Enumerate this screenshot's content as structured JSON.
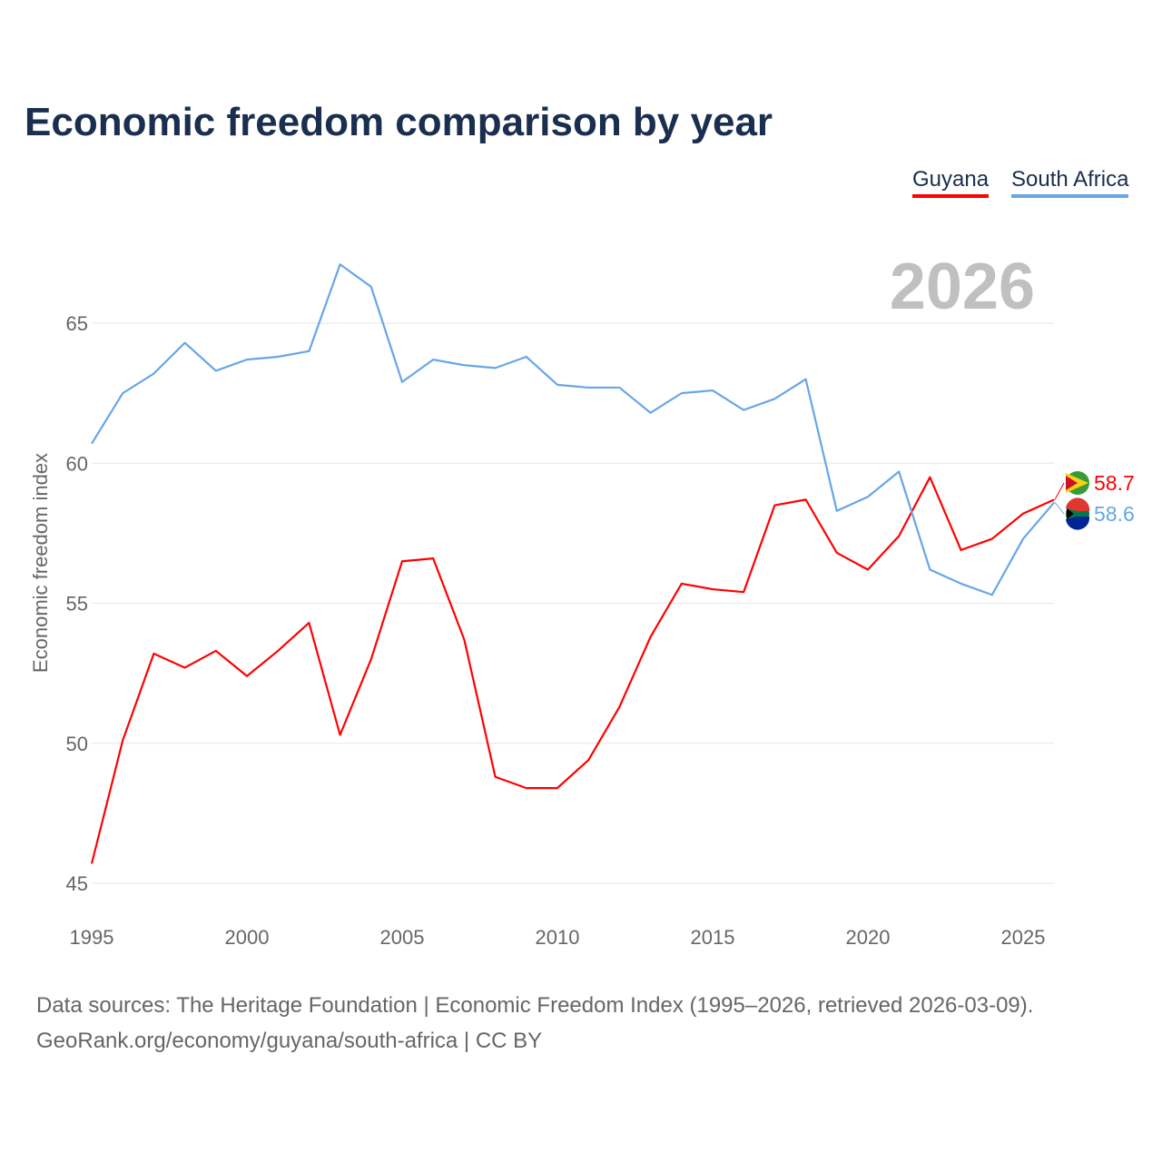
{
  "title": "Economic freedom comparison by year",
  "footer": {
    "line1": "Data sources: The Heritage Foundation | Economic Freedom Index (1995–2026, retrieved 2026-03-09).",
    "line2": "GeoRank.org/economy/guyana/south-africa | CC BY"
  },
  "chart_data": {
    "type": "line",
    "title": "Economic freedom comparison by year",
    "ylabel": "Economic freedom index",
    "xlabel": "",
    "year_label": "2026",
    "ylim": [
      45,
      67.5
    ],
    "xlim": [
      1995,
      2026
    ],
    "yticks": [
      45,
      50,
      55,
      60,
      65
    ],
    "xticks": [
      1995,
      2000,
      2005,
      2010,
      2015,
      2020,
      2025
    ],
    "legend_position": "top-right",
    "x": [
      1995,
      1996,
      1997,
      1998,
      1999,
      2000,
      2001,
      2002,
      2003,
      2004,
      2005,
      2006,
      2007,
      2008,
      2009,
      2010,
      2011,
      2012,
      2013,
      2014,
      2015,
      2016,
      2017,
      2018,
      2019,
      2020,
      2021,
      2022,
      2023,
      2024,
      2025,
      2026
    ],
    "series": [
      {
        "name": "Guyana",
        "color": "#ff0000",
        "end_label": "58.7",
        "values": [
          45.7,
          50.1,
          53.2,
          52.7,
          53.3,
          52.4,
          53.3,
          54.3,
          50.3,
          53.0,
          56.5,
          56.6,
          53.7,
          48.8,
          48.4,
          48.4,
          49.4,
          51.3,
          53.8,
          55.7,
          55.5,
          55.4,
          58.5,
          58.7,
          56.8,
          56.2,
          57.4,
          59.5,
          56.9,
          57.3,
          58.2,
          58.7
        ]
      },
      {
        "name": "South Africa",
        "color": "#66a6e8",
        "end_label": "58.6",
        "values": [
          60.7,
          62.5,
          63.2,
          64.3,
          63.3,
          63.7,
          63.8,
          64.0,
          67.1,
          66.3,
          62.9,
          63.7,
          63.5,
          63.4,
          63.8,
          62.8,
          62.7,
          62.7,
          61.8,
          62.5,
          62.6,
          61.9,
          62.3,
          63.0,
          58.3,
          58.8,
          59.7,
          56.2,
          55.7,
          55.3,
          57.3,
          58.6
        ]
      }
    ]
  }
}
